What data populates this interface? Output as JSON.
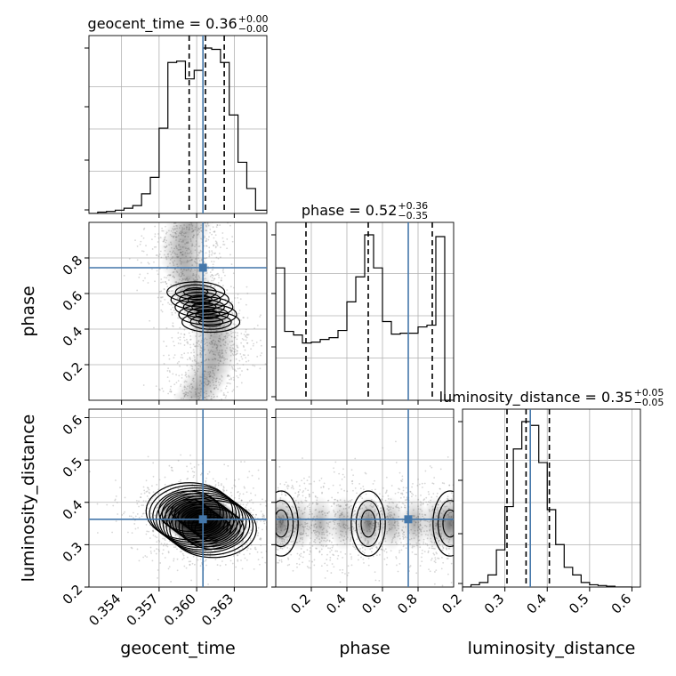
{
  "chart_data": {
    "type": "corner",
    "parameters": [
      "geocent_time",
      "phase",
      "luminosity_distance"
    ],
    "colors": {
      "truth": "#4477aa",
      "hist": "#000000",
      "grid": "#b0b0b0",
      "points": "#8c8c8c",
      "contour_fill": "#000000"
    },
    "truths": {
      "geocent_time": 0.3605,
      "phase": 0.745,
      "luminosity_distance": 0.36
    },
    "ranges": {
      "geocent_time": [
        0.3514,
        0.3656
      ],
      "phase": [
        0.0,
        1.0
      ],
      "luminosity_distance": [
        0.2,
        0.62
      ]
    },
    "ticks": {
      "geocent_time": {
        "values": [
          0.354,
          0.357,
          0.36,
          0.363
        ],
        "labels": [
          "0.354",
          "0.357",
          "0.360",
          "0.363"
        ]
      },
      "phase": {
        "values": [
          0.2,
          0.4,
          0.6,
          0.8
        ],
        "labels": [
          "0.2",
          "0.4",
          "0.6",
          "0.8"
        ]
      },
      "luminosity_distance": {
        "values": [
          0.2,
          0.3,
          0.4,
          0.5,
          0.6
        ],
        "labels": [
          "0.2",
          "0.3",
          "0.4",
          "0.5",
          "0.6"
        ]
      }
    },
    "titles": [
      {
        "param": "geocent_time",
        "text": "geocent_time = 0.36",
        "plus": "+0.00",
        "minus": "−0.00"
      },
      {
        "param": "phase",
        "text": "phase = 0.52",
        "plus": "+0.36",
        "minus": "−0.35"
      },
      {
        "param": "luminosity_distance",
        "text": "luminosity_distance = 0.35",
        "plus": "+0.05",
        "minus": "−0.05"
      }
    ],
    "quantiles": {
      "geocent_time": [
        0.3594,
        0.3607,
        0.3622
      ],
      "phase": [
        0.17,
        0.52,
        0.88
      ],
      "luminosity_distance": [
        0.305,
        0.35,
        0.405
      ]
    },
    "histograms": {
      "geocent_time": {
        "edges": [
          0.3514,
          0.3521,
          0.3528,
          0.3535,
          0.3542,
          0.3549,
          0.3556,
          0.3563,
          0.357,
          0.3577,
          0.3584,
          0.3591,
          0.3598,
          0.3605,
          0.3612,
          0.3619,
          0.3626,
          0.3633,
          0.364,
          0.3647,
          0.3656
        ],
        "counts": [
          0,
          2,
          3,
          5,
          8,
          12,
          30,
          55,
          130,
          230,
          232,
          205,
          218,
          252,
          250,
          230,
          150,
          78,
          38,
          5
        ]
      },
      "phase": {
        "edges": [
          0.0,
          0.05,
          0.1,
          0.15,
          0.2,
          0.25,
          0.3,
          0.35,
          0.4,
          0.45,
          0.5,
          0.55,
          0.6,
          0.65,
          0.7,
          0.75,
          0.8,
          0.85,
          0.9,
          0.95,
          1.0
        ],
        "counts": [
          148,
          77,
          73,
          64,
          65,
          68,
          70,
          78,
          110,
          138,
          185,
          148,
          88,
          74,
          75,
          75,
          82,
          84,
          183,
          0
        ]
      },
      "luminosity_distance": {
        "edges": [
          0.2,
          0.22,
          0.24,
          0.26,
          0.28,
          0.3,
          0.32,
          0.34,
          0.36,
          0.38,
          0.4,
          0.42,
          0.44,
          0.46,
          0.48,
          0.5,
          0.52,
          0.54,
          0.56,
          0.58,
          0.6
        ],
        "counts": [
          0,
          3,
          6,
          16,
          49,
          106,
          182,
          218,
          213,
          164,
          102,
          56,
          26,
          16,
          6,
          3,
          2,
          1,
          0,
          0
        ]
      }
    }
  }
}
